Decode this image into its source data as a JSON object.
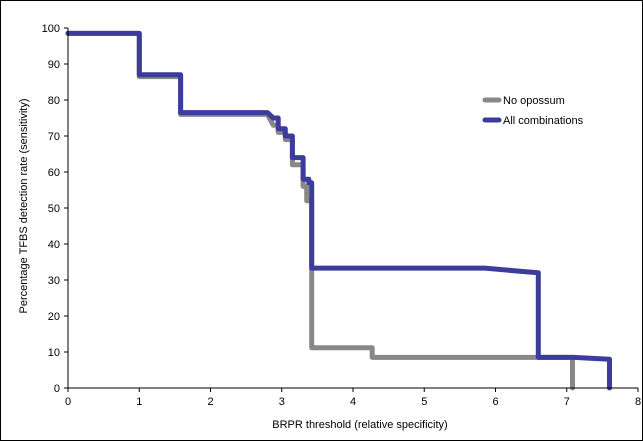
{
  "chart_data": {
    "type": "line",
    "title": "",
    "xlabel": "BRPR threshold (relative specificity)",
    "ylabel": "Percentage TFBS detection rate (sensitivity)",
    "xlim": [
      0,
      8
    ],
    "ylim": [
      0,
      100
    ],
    "xticks": [
      0,
      1,
      2,
      3,
      4,
      5,
      6,
      7,
      8
    ],
    "yticks": [
      0,
      10,
      20,
      30,
      40,
      50,
      60,
      70,
      80,
      90,
      100
    ],
    "grid": false,
    "legend_position": "top-right",
    "series": [
      {
        "name": "No opossum",
        "color": "#888888",
        "points": [
          [
            0,
            98.5
          ],
          [
            1.0,
            98.5
          ],
          [
            1.0,
            86.5
          ],
          [
            1.58,
            86.5
          ],
          [
            1.58,
            76
          ],
          [
            2.8,
            76
          ],
          [
            2.88,
            73
          ],
          [
            2.95,
            73
          ],
          [
            2.95,
            71
          ],
          [
            3.05,
            71
          ],
          [
            3.05,
            69
          ],
          [
            3.15,
            69
          ],
          [
            3.15,
            62
          ],
          [
            3.3,
            62
          ],
          [
            3.3,
            56
          ],
          [
            3.35,
            56
          ],
          [
            3.35,
            52
          ],
          [
            3.42,
            52
          ],
          [
            3.42,
            11.2
          ],
          [
            4.27,
            11.2
          ],
          [
            4.27,
            8.5
          ],
          [
            7.08,
            8.5
          ],
          [
            7.08,
            0
          ]
        ]
      },
      {
        "name": "All combinations",
        "color": "#3c3c9c",
        "points": [
          [
            0,
            98.5
          ],
          [
            1.0,
            98.5
          ],
          [
            1.0,
            87
          ],
          [
            1.58,
            87
          ],
          [
            1.58,
            76.5
          ],
          [
            2.8,
            76.5
          ],
          [
            2.88,
            75
          ],
          [
            2.95,
            75
          ],
          [
            2.95,
            72
          ],
          [
            3.05,
            72
          ],
          [
            3.05,
            70
          ],
          [
            3.15,
            70
          ],
          [
            3.15,
            64
          ],
          [
            3.3,
            64
          ],
          [
            3.3,
            58
          ],
          [
            3.38,
            58
          ],
          [
            3.38,
            57
          ],
          [
            3.42,
            57
          ],
          [
            3.42,
            33.3
          ],
          [
            5.85,
            33.3
          ],
          [
            6.3,
            32.5
          ],
          [
            6.6,
            32
          ],
          [
            6.6,
            8.5
          ],
          [
            7.1,
            8.5
          ],
          [
            7.6,
            8
          ],
          [
            7.6,
            0
          ]
        ]
      }
    ]
  }
}
